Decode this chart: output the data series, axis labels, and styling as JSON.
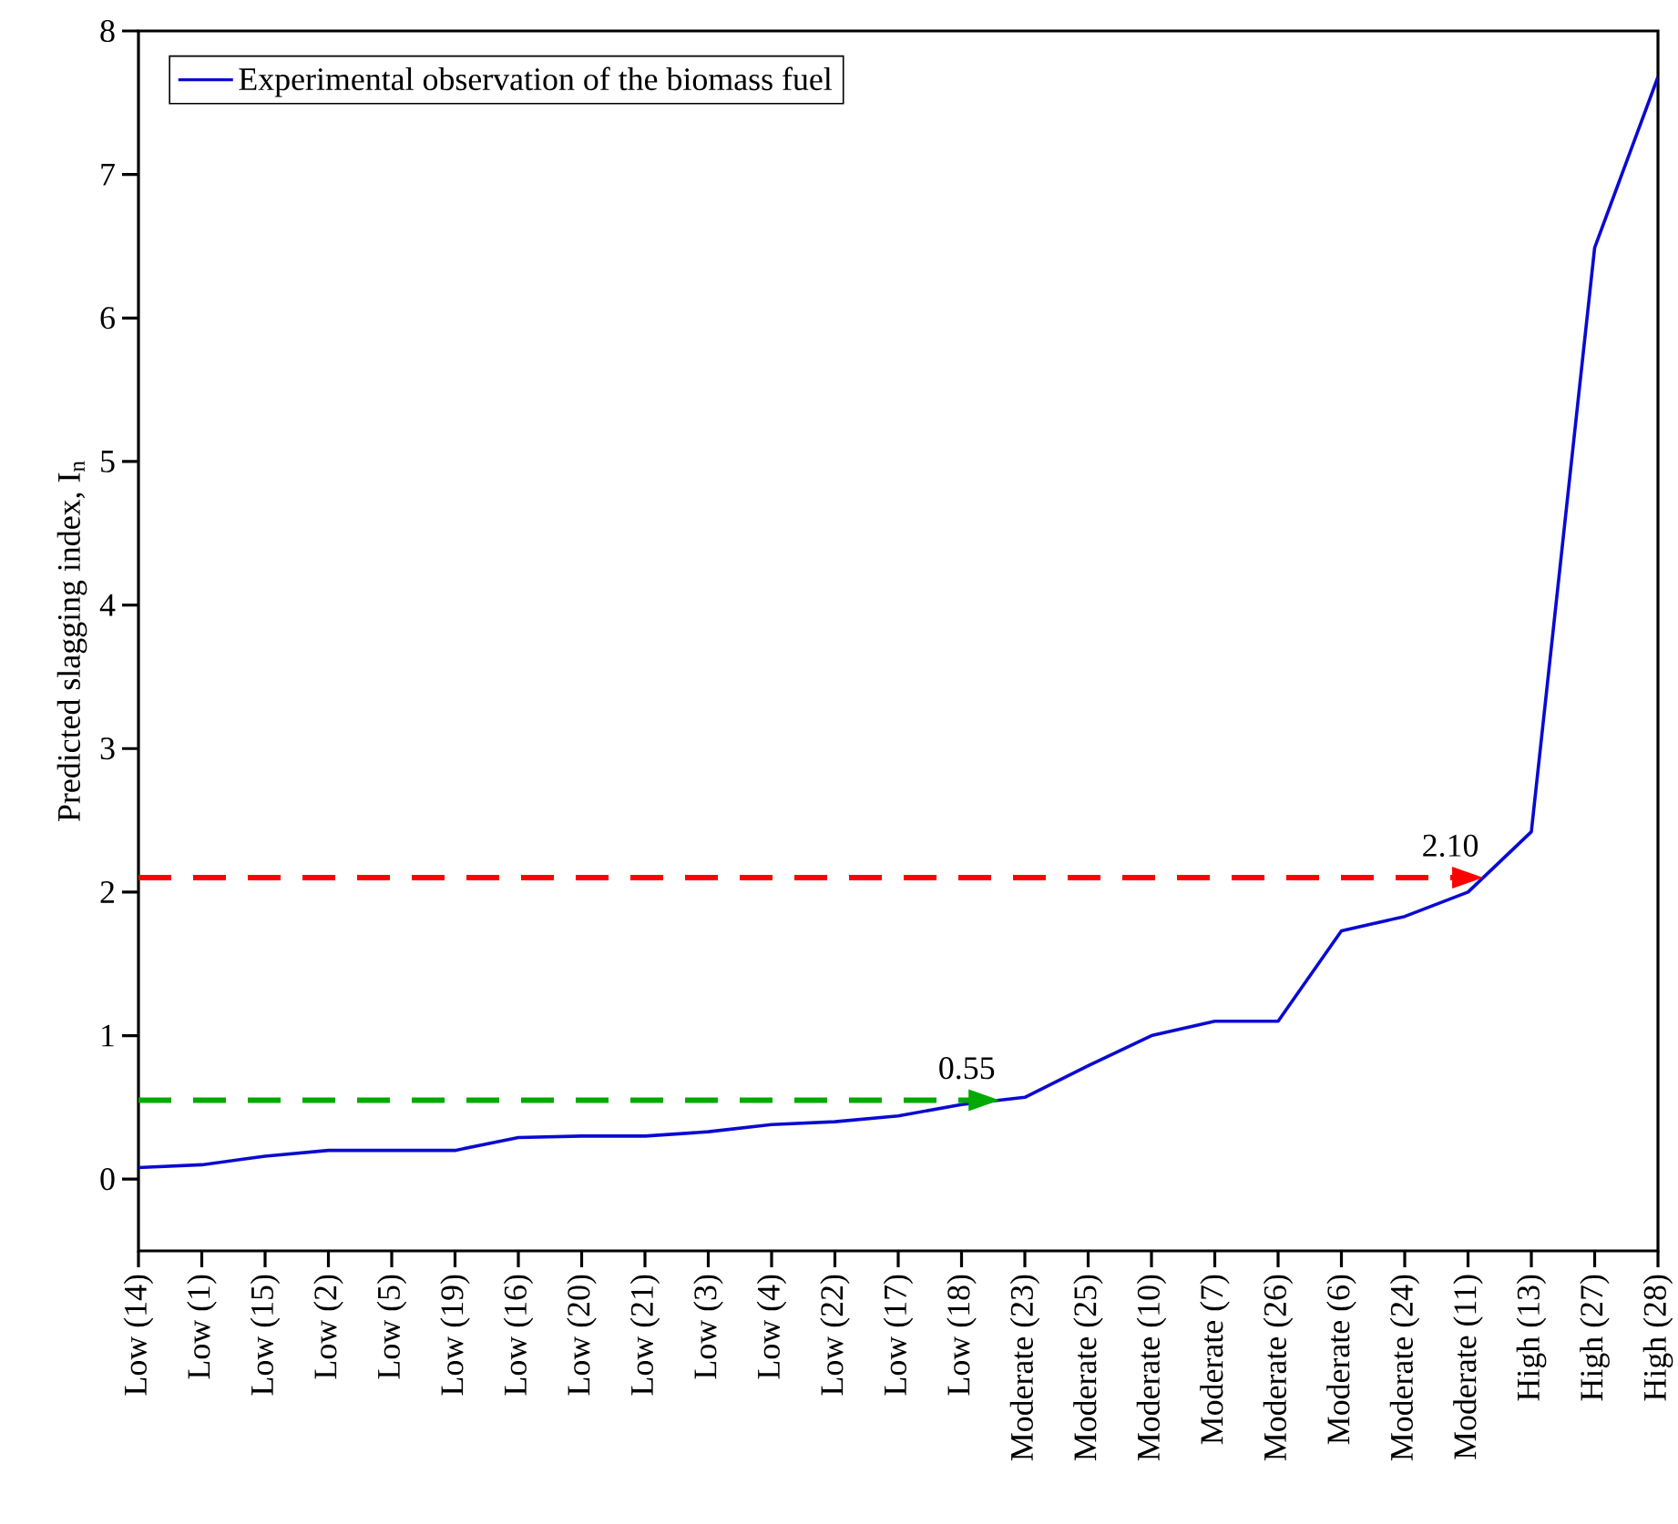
{
  "chart_data": {
    "type": "line",
    "ylabel": "Predicted slagging index, I$_{n}$",
    "categories": [
      "Low (14)",
      "Low (1)",
      "Low (15)",
      "Low (2)",
      "Low (5)",
      "Low (19)",
      "Low (16)",
      "Low (20)",
      "Low (21)",
      "Low (3)",
      "Low (4)",
      "Low (22)",
      "Low (17)",
      "Low (18)",
      "Moderate (23)",
      "Moderate (25)",
      "Moderate (10)",
      "Moderate (7)",
      "Moderate (26)",
      "Moderate (6)",
      "Moderate (24)",
      "Moderate (11)",
      "High (13)",
      "High (27)",
      "High (28)"
    ],
    "series": [
      {
        "name": "Experimental observation of the biomass fuel",
        "color": "#0a0ad2",
        "values": [
          0.08,
          0.1,
          0.16,
          0.2,
          0.2,
          0.2,
          0.29,
          0.3,
          0.3,
          0.33,
          0.38,
          0.4,
          0.44,
          0.52,
          0.57,
          0.79,
          1.0,
          1.1,
          1.1,
          1.73,
          1.83,
          2.0,
          2.42,
          6.49,
          7.68
        ]
      }
    ],
    "ylim": [
      -0.5,
      8
    ],
    "yticks": [
      0,
      1,
      2,
      3,
      4,
      5,
      6,
      7,
      8
    ],
    "ref_lines": [
      {
        "axis": "y",
        "value": 0.55,
        "label": "0.55",
        "color": "#00aa00",
        "line_style": "dashed"
      },
      {
        "axis": "y",
        "value": 2.1,
        "label": "2.10",
        "color": "#ff0000",
        "line_style": "dashed"
      }
    ],
    "legend": "top left",
    "line_style": "solid"
  }
}
